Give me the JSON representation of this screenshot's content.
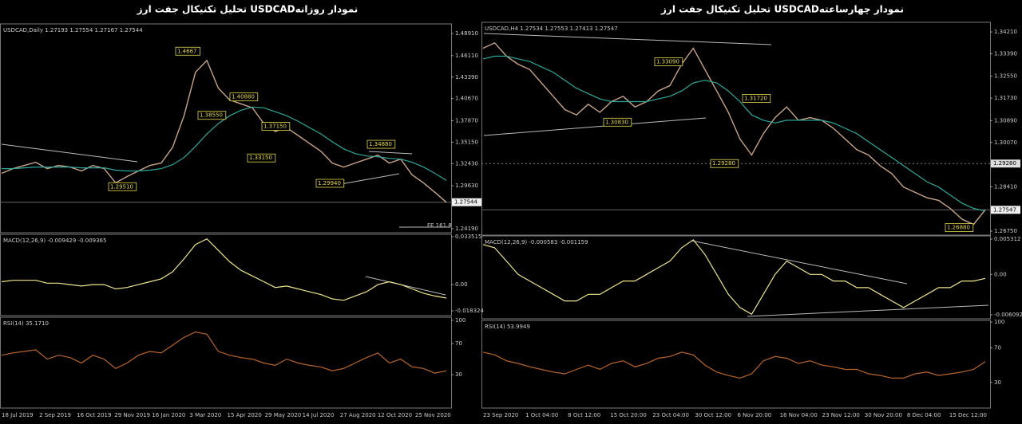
{
  "chart_data": [
    {
      "type": "line",
      "title": "تحلیل تکنیکال جفت ارز  USDCADنمودار روزانه",
      "subtitle": "USDCAD,Daily 1.27193 1.27554 1.27167 1.27544",
      "ylim": [
        1.2368,
        1.5013
      ],
      "yticks": [
        {
          "value": 1.4891,
          "label": "1.48910"
        },
        {
          "value": 1.4611,
          "label": "1.46110"
        },
        {
          "value": 1.4339,
          "label": "1.43390"
        },
        {
          "value": 1.4067,
          "label": "1.40670"
        },
        {
          "value": 1.3787,
          "label": "1.37870"
        },
        {
          "value": 1.3515,
          "label": "1.35150"
        },
        {
          "value": 1.3243,
          "label": "1.32430"
        },
        {
          "value": 1.2963,
          "label": "1.29630"
        },
        {
          "value": 1.2419,
          "label": "1.24190"
        }
      ],
      "current_price": {
        "value": 1.27544,
        "label": "1.27544"
      },
      "note": "FE 161.8",
      "annotations": [
        {
          "value": 1.4667,
          "label": "1.4667"
        },
        {
          "value": 1.3855,
          "label": "1.38550"
        },
        {
          "value": 1.4088,
          "label": "1.40880"
        },
        {
          "value": 1.3715,
          "label": "1.37150"
        },
        {
          "value": 1.3315,
          "label": "1.33150"
        },
        {
          "value": 1.2951,
          "label": "1.29510"
        },
        {
          "value": 1.2994,
          "label": "1.29940"
        },
        {
          "value": 1.3488,
          "label": "1.34880"
        }
      ],
      "series": [
        {
          "color": "#c9a487",
          "values": [
            1.312,
            1.318,
            1.322,
            1.326,
            1.318,
            1.322,
            1.32,
            1.315,
            1.322,
            1.318,
            1.3,
            1.308,
            1.315,
            1.322,
            1.325,
            1.345,
            1.385,
            1.44,
            1.455,
            1.42,
            1.405,
            1.4,
            1.395,
            1.375,
            1.365,
            1.37,
            1.36,
            1.35,
            1.34,
            1.325,
            1.32,
            1.325,
            1.33,
            1.335,
            1.325,
            1.33,
            1.31,
            1.3,
            1.288,
            1.2754
          ]
        },
        {
          "color": "#2fa79c",
          "values": [
            1.318,
            1.318,
            1.319,
            1.32,
            1.32,
            1.32,
            1.32,
            1.319,
            1.319,
            1.319,
            1.316,
            1.315,
            1.315,
            1.316,
            1.318,
            1.323,
            1.332,
            1.346,
            1.362,
            1.375,
            1.385,
            1.392,
            1.396,
            1.395,
            1.39,
            1.385,
            1.378,
            1.37,
            1.362,
            1.352,
            1.343,
            1.337,
            1.334,
            1.333,
            1.331,
            1.33,
            1.326,
            1.32,
            1.312,
            1.303
          ]
        }
      ]
    },
    {
      "type": "line",
      "subtitle": "MACD(12,26,9) -0.009429 -0.009365",
      "ylim": [
        -0.0217,
        0.0352
      ],
      "yticks": [
        {
          "value": 0.033515,
          "label": "0.033515"
        },
        {
          "value": 0,
          "label": "0.00"
        },
        {
          "value": -0.018324,
          "label": "-0.018324"
        }
      ],
      "series": [
        {
          "color": "#efe58a",
          "values": [
            0.002,
            0.003,
            0.003,
            0.003,
            0.001,
            0.001,
            0,
            -0.001,
            0,
            0,
            -0.003,
            -0.002,
            0,
            0.002,
            0.004,
            0.009,
            0.018,
            0.028,
            0.032,
            0.024,
            0.016,
            0.01,
            0.006,
            0.002,
            -0.002,
            -0.001,
            -0.003,
            -0.005,
            -0.007,
            -0.01,
            -0.011,
            -0.008,
            -0.005,
            0,
            0.002,
            0,
            -0.003,
            -0.006,
            -0.008,
            -0.0094
          ]
        }
      ]
    },
    {
      "type": "line",
      "subtitle": "RSI(14) 35.1710",
      "ylim": [
        -13,
        104
      ],
      "yticks": [
        100,
        70,
        30
      ],
      "x_labels": [
        "18 Jul 2019",
        "2 Sep 2019",
        "16 Oct 2019",
        "29 Nov 2019",
        "16 Jan 2020",
        "3 Mar 2020",
        "15 Apr 2020",
        "29 May 2020",
        "14 Jul 2020",
        "27 Aug 2020",
        "12 Oct 2020",
        "25 Nov 2020"
      ],
      "series": [
        {
          "color": "#b8652a",
          "values": [
            55,
            58,
            60,
            62,
            50,
            55,
            52,
            45,
            55,
            50,
            38,
            45,
            55,
            60,
            58,
            68,
            78,
            85,
            82,
            60,
            55,
            52,
            50,
            45,
            42,
            50,
            45,
            42,
            40,
            35,
            38,
            45,
            52,
            58,
            45,
            50,
            40,
            38,
            32,
            35
          ]
        }
      ]
    },
    {
      "type": "line",
      "title": "تحلیل تکنیکال جفت ارز  USDCADنمودار چهارساعته",
      "subtitle": "USDCAD,H4 1.27534 1.27553 1.27413 1.27547",
      "ylim": [
        1.266,
        1.3457
      ],
      "yticks": [
        {
          "value": 1.3421,
          "label": "1.34210"
        },
        {
          "value": 1.3339,
          "label": "1.33390"
        },
        {
          "value": 1.3255,
          "label": "1.32550"
        },
        {
          "value": 1.3173,
          "label": "1.31730"
        },
        {
          "value": 1.3089,
          "label": "1.30890"
        },
        {
          "value": 1.3007,
          "label": "1.30070"
        },
        {
          "value": 1.2841,
          "label": "1.28410"
        },
        {
          "value": 1.2675,
          "label": "1.26750"
        }
      ],
      "current_price": {
        "value": 1.27547,
        "label": "1.27547"
      },
      "marked_level": {
        "value": 1.2928,
        "label": "1.29280"
      },
      "annotations": [
        {
          "value": 1.3309,
          "label": "1.33090"
        },
        {
          "value": 1.3083,
          "label": "1.30830"
        },
        {
          "value": 1.2928,
          "label": "1.29280"
        },
        {
          "value": 1.3172,
          "label": "1.31720"
        },
        {
          "value": 1.2688,
          "label": "1.26880"
        }
      ],
      "series": [
        {
          "color": "#c9a487",
          "values": [
            1.336,
            1.338,
            1.333,
            1.33,
            1.328,
            1.323,
            1.318,
            1.313,
            1.311,
            1.315,
            1.312,
            1.316,
            1.318,
            1.314,
            1.316,
            1.32,
            1.322,
            1.33,
            1.336,
            1.328,
            1.32,
            1.312,
            1.302,
            1.296,
            1.304,
            1.31,
            1.314,
            1.309,
            1.31,
            1.309,
            1.306,
            1.302,
            1.298,
            1.296,
            1.292,
            1.289,
            1.284,
            1.282,
            1.28,
            1.279,
            1.276,
            1.272,
            1.27,
            1.2755
          ]
        },
        {
          "color": "#2fa79c",
          "values": [
            1.332,
            1.333,
            1.333,
            1.332,
            1.331,
            1.329,
            1.327,
            1.324,
            1.321,
            1.319,
            1.317,
            1.316,
            1.316,
            1.316,
            1.316,
            1.317,
            1.318,
            1.32,
            1.323,
            1.324,
            1.323,
            1.32,
            1.316,
            1.311,
            1.309,
            1.308,
            1.309,
            1.309,
            1.309,
            1.309,
            1.308,
            1.306,
            1.304,
            1.301,
            1.298,
            1.295,
            1.292,
            1.289,
            1.286,
            1.284,
            1.281,
            1.278,
            1.276,
            1.275
          ]
        }
      ]
    },
    {
      "type": "line",
      "subtitle": "MACD(12,26,9) -0.000583 -0.001159",
      "ylim": [
        -0.00669,
        0.00579
      ],
      "yticks": [
        {
          "value": 0.005312,
          "label": "0.005312"
        },
        {
          "value": 0,
          "label": "0.00"
        },
        {
          "value": -0.006092,
          "label": "-0.006092"
        }
      ],
      "series": [
        {
          "color": "#efe58a",
          "values": [
            0.0045,
            0.004,
            0.002,
            0,
            -0.001,
            -0.002,
            -0.003,
            -0.004,
            -0.004,
            -0.003,
            -0.003,
            -0.002,
            -0.001,
            -0.001,
            0,
            0.001,
            0.002,
            0.004,
            0.0052,
            0.003,
            0,
            -0.003,
            -0.005,
            -0.006,
            -0.003,
            0,
            0.002,
            0.001,
            0,
            0,
            -0.001,
            -0.001,
            -0.002,
            -0.002,
            -0.003,
            -0.004,
            -0.005,
            -0.004,
            -0.003,
            -0.002,
            -0.002,
            -0.001,
            -0.001,
            -0.0006
          ]
        }
      ]
    },
    {
      "type": "line",
      "subtitle": "RSI(14) 53.9949",
      "ylim": [
        0.2,
        101.9
      ],
      "yticks": [
        100,
        70,
        30
      ],
      "x_labels": [
        "23 Sep 2020",
        "1 Oct 04:00",
        "8 Oct 12:00",
        "15 Oct 20:00",
        "23 Oct 04:00",
        "30 Oct 12:00",
        "6 Nov 20:00",
        "16 Nov 04:00",
        "23 Nov 12:00",
        "30 Nov 20:00",
        "8 Dec 04:00",
        "15 Dec 12:00"
      ],
      "series": [
        {
          "color": "#b8652a",
          "values": [
            65,
            62,
            55,
            52,
            48,
            45,
            42,
            40,
            45,
            50,
            45,
            52,
            55,
            48,
            52,
            58,
            60,
            65,
            62,
            50,
            42,
            38,
            35,
            40,
            55,
            60,
            58,
            52,
            55,
            50,
            48,
            45,
            45,
            40,
            38,
            35,
            35,
            40,
            42,
            38,
            40,
            42,
            45,
            54
          ]
        }
      ]
    }
  ]
}
